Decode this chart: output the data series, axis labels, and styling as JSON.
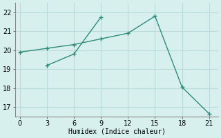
{
  "line1_x": [
    0,
    3,
    6,
    9,
    12,
    15,
    18,
    21
  ],
  "line1_y": [
    19.9,
    20.1,
    20.3,
    20.6,
    20.9,
    21.8,
    18.05,
    16.65
  ],
  "line2_x": [
    3,
    6,
    9
  ],
  "line2_y": [
    19.2,
    19.8,
    21.75
  ],
  "xlabel": "Humidex (Indice chaleur)",
  "xlim": [
    -0.5,
    22
  ],
  "ylim": [
    16.5,
    22.5
  ],
  "xticks": [
    0,
    3,
    6,
    9,
    12,
    15,
    18,
    21
  ],
  "yticks": [
    17,
    18,
    19,
    20,
    21,
    22
  ],
  "line_color": "#2e8b7a",
  "bg_color": "#d8f0ed",
  "grid_color": "#b8ddd8"
}
